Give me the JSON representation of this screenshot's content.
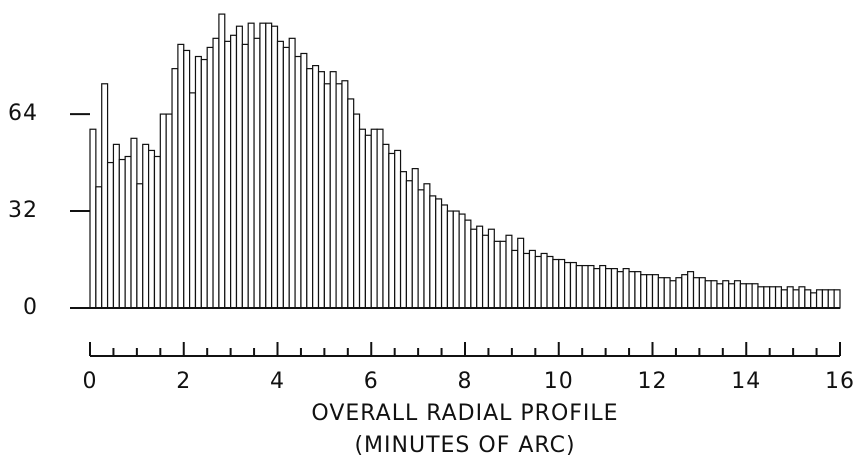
{
  "chart_data": {
    "type": "histogram",
    "xlabel": [
      "OVERALL RADIAL PROFILE",
      "(MINUTES OF ARC)"
    ],
    "bins": [
      0,
      0.125,
      0.25,
      0.375,
      0.5,
      0.625,
      0.75,
      0.875,
      1,
      1.125,
      1.25,
      1.375,
      1.5,
      1.625,
      1.75,
      1.875,
      2,
      2.125,
      2.25,
      2.375,
      2.5,
      2.625,
      2.75,
      2.875,
      3,
      3.125,
      3.25,
      3.375,
      3.5,
      3.625,
      3.75,
      3.875,
      4,
      4.125,
      4.25,
      4.375,
      4.5,
      4.625,
      4.75,
      4.875,
      5,
      5.125,
      5.25,
      5.375,
      5.5,
      5.625,
      5.75,
      5.875,
      6,
      6.125,
      6.25,
      6.375,
      6.5,
      6.625,
      6.75,
      6.875,
      7,
      7.125,
      7.25,
      7.375,
      7.5,
      7.625,
      7.75,
      7.875,
      8,
      8.125,
      8.25,
      8.375,
      8.5,
      8.625,
      8.75,
      8.875,
      9,
      9.125,
      9.25,
      9.375,
      9.5,
      9.625,
      9.75,
      9.875,
      10,
      10.125,
      10.25,
      10.375,
      10.5,
      10.625,
      10.75,
      10.875,
      11,
      11.125,
      11.25,
      11.375,
      11.5,
      11.625,
      11.75,
      11.875,
      12,
      12.125,
      12.25,
      12.375,
      12.5,
      12.625,
      12.75,
      12.875,
      13,
      13.125,
      13.25,
      13.375,
      13.5,
      13.625,
      13.75,
      13.875,
      14,
      14.125,
      14.25,
      14.375,
      14.5,
      14.625,
      14.75,
      14.875,
      15,
      15.125,
      15.25,
      15.375,
      15.5,
      15.625,
      15.75,
      15.875,
      16
    ],
    "counts": [
      59,
      40,
      74,
      48,
      54,
      49,
      50,
      56,
      41,
      54,
      52,
      50,
      64,
      64,
      79,
      87,
      85,
      71,
      83,
      82,
      86,
      89,
      97,
      88,
      90,
      93,
      87,
      94,
      89,
      94,
      94,
      93,
      88,
      86,
      89,
      83,
      84,
      79,
      80,
      78,
      74,
      78,
      74,
      75,
      69,
      64,
      59,
      57,
      59,
      59,
      54,
      51,
      52,
      45,
      42,
      46,
      39,
      41,
      37,
      36,
      34,
      32,
      32,
      31,
      29,
      26,
      27,
      24,
      26,
      22,
      22,
      24,
      19,
      23,
      18,
      19,
      17,
      18,
      17,
      16,
      16,
      15,
      15,
      14,
      14,
      14,
      13,
      14,
      13,
      13,
      12,
      13,
      12,
      12,
      11,
      11,
      11,
      10,
      10,
      9,
      10,
      11,
      12,
      10,
      10,
      9,
      9,
      8,
      9,
      8,
      9,
      8,
      8,
      8,
      7,
      7,
      7,
      7,
      6,
      7,
      6,
      7,
      6,
      5,
      6,
      6,
      6,
      6
    ],
    "color": "#ffffff",
    "xlim": [
      0,
      16
    ],
    "xticks": [
      0,
      2,
      4,
      6,
      8,
      10,
      12,
      14,
      16
    ],
    "xticks_minor": [
      0.5,
      1,
      1.5,
      2.5,
      3,
      3.5,
      4.5,
      5,
      5.5,
      6.5,
      7,
      7.5,
      8.5,
      9,
      9.5,
      10.5,
      11,
      11.5,
      12.5,
      13,
      13.5,
      14.5,
      15,
      15.5
    ],
    "ylim": [
      0,
      100
    ],
    "yticks": [
      0,
      32,
      64
    ],
    "grid": false
  }
}
